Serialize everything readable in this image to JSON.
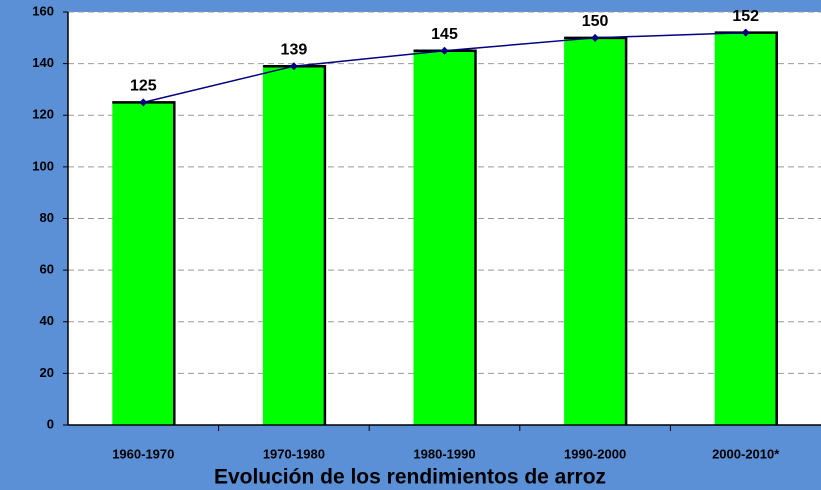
{
  "chart_data": {
    "type": "bar",
    "title": "Evolución de los rendimientos de arroz",
    "categories": [
      "1960-1970",
      "1970-1980",
      "1980-1990",
      "1990-2000",
      "2000-2010*"
    ],
    "values": [
      125,
      139,
      145,
      150,
      152
    ],
    "color": "#00ff00",
    "line_color": "#000080",
    "ylim": [
      0,
      160
    ],
    "yticks": [
      0,
      20,
      40,
      60,
      80,
      100,
      120,
      140,
      160
    ],
    "grid": true
  }
}
